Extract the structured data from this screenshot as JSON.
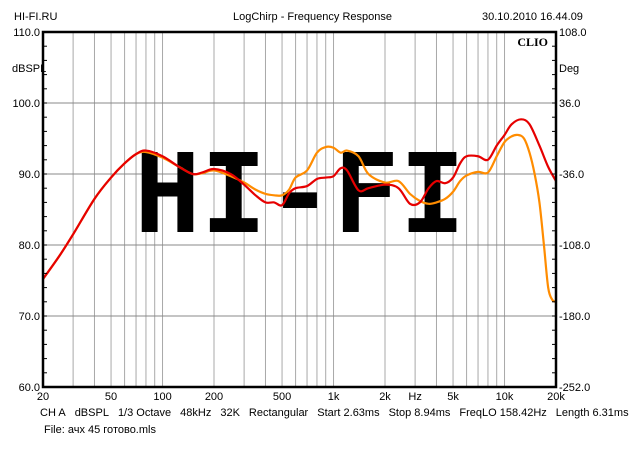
{
  "header": {
    "left": "HI-FI.RU",
    "title": "LogChirp - Frequency Response",
    "timestamp": "30.10.2010 16.44.09"
  },
  "brand": "CLIO",
  "watermark": "HI-FI",
  "footer": {
    "params": [
      "CH A",
      "dBSPL",
      "1/3 Octave",
      "48kHz",
      "32K",
      "Rectangular",
      "Start 2.63ms",
      "Stop 8.94ms",
      "FreqLO 158.42Hz",
      "Length 6.31ms"
    ],
    "file": "File: ачх 45 готово.mls"
  },
  "colors": {
    "series1": "#e60000",
    "series2": "#ff8c00",
    "grid": "#999999",
    "watermark": "#d4d4d4"
  },
  "chart_data": {
    "type": "line",
    "title": "LogChirp - Frequency Response",
    "xlabel": "Hz",
    "ylabel": "dBSPL",
    "y2label": "Deg",
    "xscale": "log",
    "xlim": [
      20,
      20000
    ],
    "ylim": [
      60,
      110
    ],
    "y2lim": [
      -252,
      108
    ],
    "xticks": [
      {
        "v": 20,
        "l": "20"
      },
      {
        "v": 50,
        "l": "50"
      },
      {
        "v": 100,
        "l": "100"
      },
      {
        "v": 200,
        "l": "200"
      },
      {
        "v": 500,
        "l": "500"
      },
      {
        "v": 1000,
        "l": "1k"
      },
      {
        "v": 2000,
        "l": "2k"
      },
      {
        "v": 5000,
        "l": "5k"
      },
      {
        "v": 10000,
        "l": "10k"
      },
      {
        "v": 20000,
        "l": "20k"
      }
    ],
    "xunit_tick": {
      "v": 3000,
      "l": "Hz"
    },
    "yticks": [
      "60.0",
      "70.0",
      "80.0",
      "90.0",
      "100.0",
      "110.0"
    ],
    "y2ticks": [
      "-252.0",
      "-180.0",
      "-108.0",
      "-36.0",
      "36.0",
      "108.0"
    ],
    "grid": true,
    "series": [
      {
        "name": "red",
        "color": "#e60000",
        "x": [
          20,
          25,
          30,
          40,
          50,
          60,
          70,
          80,
          100,
          125,
          150,
          170,
          200,
          250,
          300,
          350,
          400,
          450,
          500,
          550,
          600,
          700,
          800,
          900,
          1000,
          1100,
          1200,
          1400,
          1600,
          2000,
          2400,
          2800,
          3200,
          3600,
          4000,
          4500,
          5000,
          5500,
          6000,
          7000,
          8000,
          9000,
          10000,
          11000,
          12500,
          14000,
          16000,
          18000,
          20000
        ],
        "y": [
          75.2,
          78.5,
          81.5,
          86.5,
          89.5,
          91.5,
          92.8,
          93.3,
          92.5,
          91,
          90,
          90.2,
          90.7,
          90,
          88.5,
          87,
          86,
          86,
          85.6,
          87.3,
          88,
          88.3,
          89.3,
          89.5,
          89.7,
          90.8,
          90.5,
          87.7,
          88,
          88.5,
          88,
          85.8,
          86,
          88,
          89,
          88.7,
          89.5,
          91.5,
          92.5,
          92.5,
          92,
          94,
          95.5,
          97,
          97.7,
          97,
          94,
          91,
          89
        ]
      },
      {
        "name": "orange",
        "color": "#ff8c00",
        "x": [
          20,
          25,
          30,
          40,
          50,
          60,
          70,
          80,
          100,
          125,
          150,
          170,
          200,
          250,
          300,
          350,
          400,
          450,
          500,
          550,
          600,
          700,
          800,
          900,
          1000,
          1100,
          1200,
          1400,
          1600,
          2000,
          2400,
          2800,
          3200,
          3600,
          4000,
          4500,
          5000,
          5500,
          6000,
          7000,
          8000,
          9000,
          10000,
          11000,
          12000,
          13000,
          14000,
          15000,
          16000,
          17000,
          18000,
          19000,
          20000
        ],
        "y": [
          75.2,
          78.5,
          81.5,
          86.5,
          89.5,
          91.5,
          92.8,
          93.1,
          92.3,
          91,
          90,
          90.1,
          90.5,
          89.7,
          88.8,
          87.8,
          87.2,
          87,
          87,
          87.8,
          89.5,
          90.5,
          93,
          93.8,
          93.7,
          93,
          93.3,
          92.5,
          90,
          88.8,
          89,
          87.2,
          86.2,
          85.8,
          86,
          86.5,
          87.5,
          89,
          89.8,
          90.3,
          90.2,
          92.5,
          94.5,
          95.3,
          95.5,
          95,
          93,
          90,
          86,
          80,
          74,
          72.3,
          72
        ]
      }
    ]
  }
}
